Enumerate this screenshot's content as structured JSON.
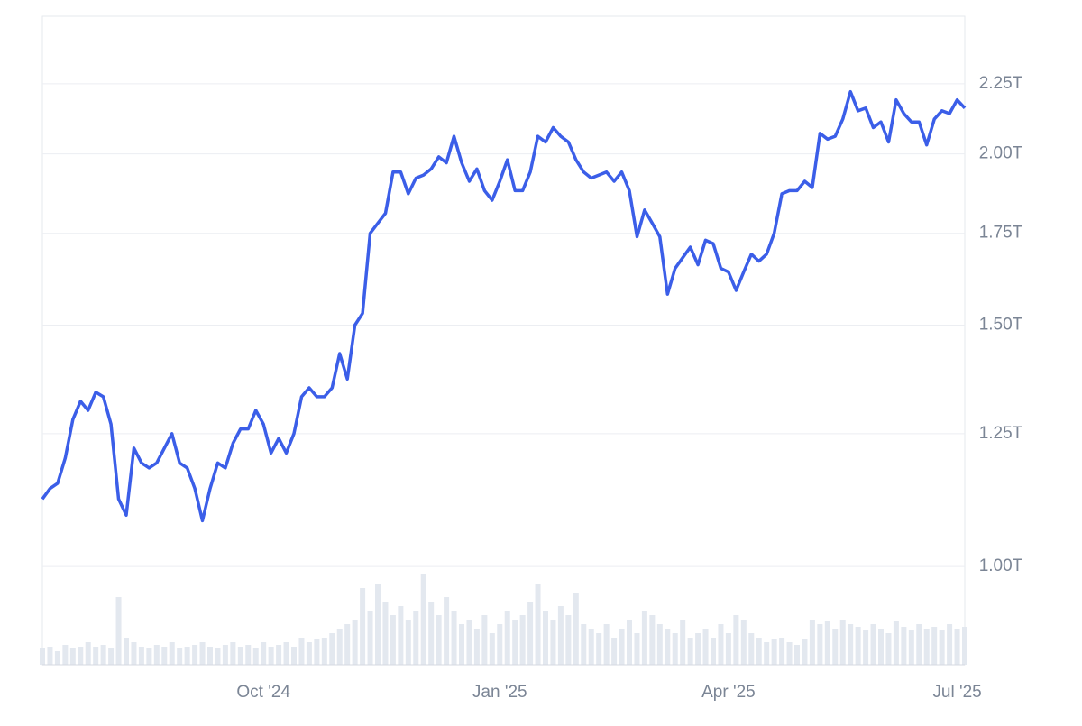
{
  "chart_data": {
    "type": "line",
    "log_scale": true,
    "grid": true,
    "categories": [
      null,
      null,
      null,
      null,
      null,
      null,
      null,
      null,
      null,
      null,
      null,
      null,
      null,
      null,
      null,
      null,
      null,
      null,
      null,
      null,
      null,
      null,
      null,
      null,
      null,
      null,
      null,
      null,
      null,
      "Oct '24",
      null,
      null,
      null,
      null,
      null,
      null,
      null,
      null,
      null,
      null,
      null,
      null,
      null,
      null,
      null,
      null,
      null,
      null,
      null,
      null,
      null,
      null,
      null,
      null,
      null,
      null,
      null,
      null,
      null,
      null,
      "Jan '25",
      null,
      null,
      null,
      null,
      null,
      null,
      null,
      null,
      null,
      null,
      null,
      null,
      null,
      null,
      null,
      null,
      null,
      null,
      null,
      null,
      null,
      null,
      null,
      null,
      null,
      null,
      null,
      null,
      null,
      "Apr '25",
      null,
      null,
      null,
      null,
      null,
      null,
      null,
      null,
      null,
      null,
      null,
      null,
      null,
      null,
      null,
      null,
      null,
      null,
      null,
      null,
      null,
      null,
      null,
      null,
      null,
      null,
      null,
      null,
      null,
      "Jul '25",
      null
    ],
    "series": [
      {
        "color": "#3b5ee8",
        "values": [
          1.12,
          1.14,
          1.15,
          1.2,
          1.28,
          1.32,
          1.3,
          1.34,
          1.33,
          1.27,
          1.12,
          1.09,
          1.22,
          1.19,
          1.18,
          1.19,
          1.22,
          1.25,
          1.19,
          1.18,
          1.14,
          1.08,
          1.14,
          1.19,
          1.18,
          1.23,
          1.26,
          1.26,
          1.3,
          1.27,
          1.21,
          1.24,
          1.21,
          1.25,
          1.33,
          1.35,
          1.33,
          1.33,
          1.35,
          1.43,
          1.37,
          1.5,
          1.53,
          1.75,
          1.78,
          1.81,
          1.94,
          1.94,
          1.87,
          1.92,
          1.93,
          1.95,
          1.99,
          1.97,
          2.06,
          1.97,
          1.91,
          1.95,
          1.88,
          1.85,
          1.91,
          1.98,
          1.88,
          1.88,
          1.94,
          2.06,
          2.04,
          2.09,
          2.06,
          2.04,
          1.98,
          1.94,
          1.92,
          1.93,
          1.94,
          1.91,
          1.94,
          1.88,
          1.74,
          1.82,
          1.78,
          1.74,
          1.58,
          1.65,
          1.68,
          1.71,
          1.66,
          1.73,
          1.72,
          1.65,
          1.64,
          1.59,
          1.64,
          1.69,
          1.67,
          1.69,
          1.75,
          1.87,
          1.88,
          1.88,
          1.91,
          1.89,
          2.07,
          2.05,
          2.06,
          2.12,
          2.22,
          2.15,
          2.16,
          2.09,
          2.11,
          2.04,
          2.19,
          2.14,
          2.11,
          2.11,
          2.03,
          2.12,
          2.15,
          2.14,
          2.19,
          2.16
        ]
      }
    ],
    "volume": {
      "color": "#e3e8ef",
      "values": [
        18,
        20,
        15,
        22,
        18,
        20,
        25,
        20,
        22,
        18,
        75,
        30,
        25,
        20,
        18,
        22,
        20,
        25,
        18,
        20,
        22,
        25,
        20,
        18,
        22,
        25,
        20,
        22,
        18,
        25,
        20,
        22,
        25,
        20,
        30,
        25,
        28,
        30,
        35,
        40,
        45,
        50,
        85,
        60,
        90,
        70,
        55,
        65,
        50,
        60,
        100,
        70,
        55,
        75,
        60,
        45,
        50,
        40,
        55,
        35,
        45,
        60,
        50,
        55,
        70,
        90,
        60,
        50,
        65,
        55,
        80,
        45,
        40,
        35,
        45,
        30,
        40,
        50,
        35,
        60,
        55,
        45,
        40,
        35,
        50,
        30,
        35,
        40,
        30,
        45,
        35,
        55,
        50,
        35,
        30,
        25,
        28,
        30,
        25,
        22,
        28,
        50,
        45,
        48,
        40,
        50,
        45,
        42,
        38,
        45,
        40,
        35,
        48,
        42,
        38,
        45,
        40,
        42,
        38,
        45,
        40,
        42
      ]
    },
    "ylim": [
      0.848,
      2.52
    ],
    "yticks": [
      {
        "value": 1,
        "label": "1.00T"
      },
      {
        "value": 1.25,
        "label": "1.25T"
      },
      {
        "value": 1.5,
        "label": "1.50T"
      },
      {
        "value": 1.75,
        "label": "1.75T"
      },
      {
        "value": 2,
        "label": "2.00T"
      },
      {
        "value": 2.25,
        "label": "2.25T"
      }
    ]
  }
}
